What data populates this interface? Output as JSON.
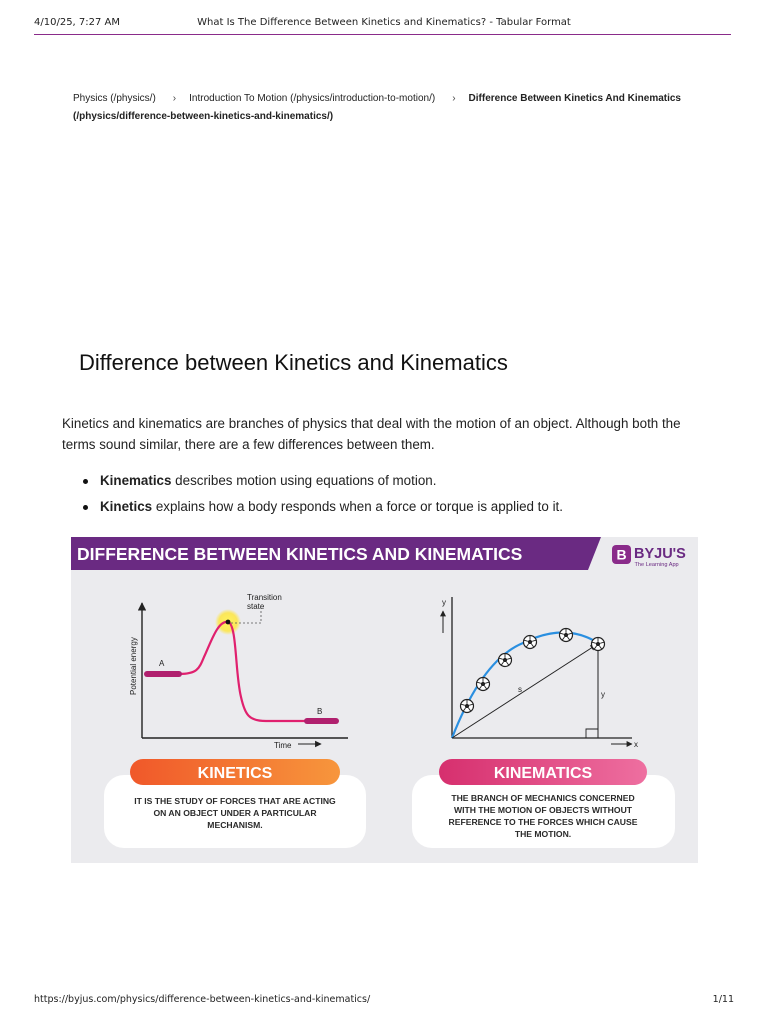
{
  "header": {
    "datetime": "4/10/25, 7:27 AM",
    "title": "What Is The Difference Between Kinetics and Kinematics? - Tabular Format"
  },
  "breadcrumb": [
    "Physics (/physics/)",
    "Introduction To Motion (/physics/introduction-to-motion/)",
    "Difference Between Kinetics And Kinematics (/physics/difference-between-kinetics-and-kinematics/)"
  ],
  "breadcrumb_separator": "›",
  "page_title": "Difference between Kinetics and Kinematics",
  "intro": "Kinetics and kinematics are branches of physics that deal with the motion of an object. Although both the terms sound similar, there are a few differences between them.",
  "bullets": [
    {
      "term": "Kinematics",
      "text": " describes motion using equations of motion."
    },
    {
      "term": "Kinetics",
      "text": " explains how a body responds when a force or torque is applied to it."
    }
  ],
  "infographic": {
    "banner_title": "DIFFERENCE BETWEEN KINETICS AND KINEMATICS",
    "brand": "BYJU'S",
    "brand_tagline": "The Learning App",
    "brand_logo_letter": "B",
    "colors": {
      "banner": "#6a2a82",
      "panel": "#ebebee",
      "kinetics_pill": "#f26a2a",
      "kinematics_pill": "#e0407a",
      "kinetics_curve": "#e0206e",
      "kinematics_curve": "#2a8fe0"
    },
    "left_chart": {
      "y_axis_label": "Potential energy",
      "x_axis_label": "Time",
      "peak_label_line1": "Transition",
      "peak_label_line2": "state",
      "point_a": "A",
      "point_b": "B"
    },
    "right_chart": {
      "y_axis_label": "y",
      "x_axis_label": "x",
      "displacement_label": "s",
      "height_label": "y"
    },
    "kinetics": {
      "label": "KINETICS",
      "desc": [
        "IT IS THE STUDY OF FORCES THAT ARE ACTING",
        "ON AN OBJECT UNDER A PARTICULAR",
        "MECHANISM."
      ]
    },
    "kinematics": {
      "label": "KINEMATICS",
      "desc": [
        "THE BRANCH OF MECHANICS CONCERNED",
        "WITH THE MOTION OF OBJECTS WITHOUT",
        "REFERENCE TO THE FORCES WHICH CAUSE",
        "THE MOTION."
      ]
    }
  },
  "footer": {
    "url": "https://byjus.com/physics/difference-between-kinetics-and-kinematics/",
    "page": "1/11"
  }
}
